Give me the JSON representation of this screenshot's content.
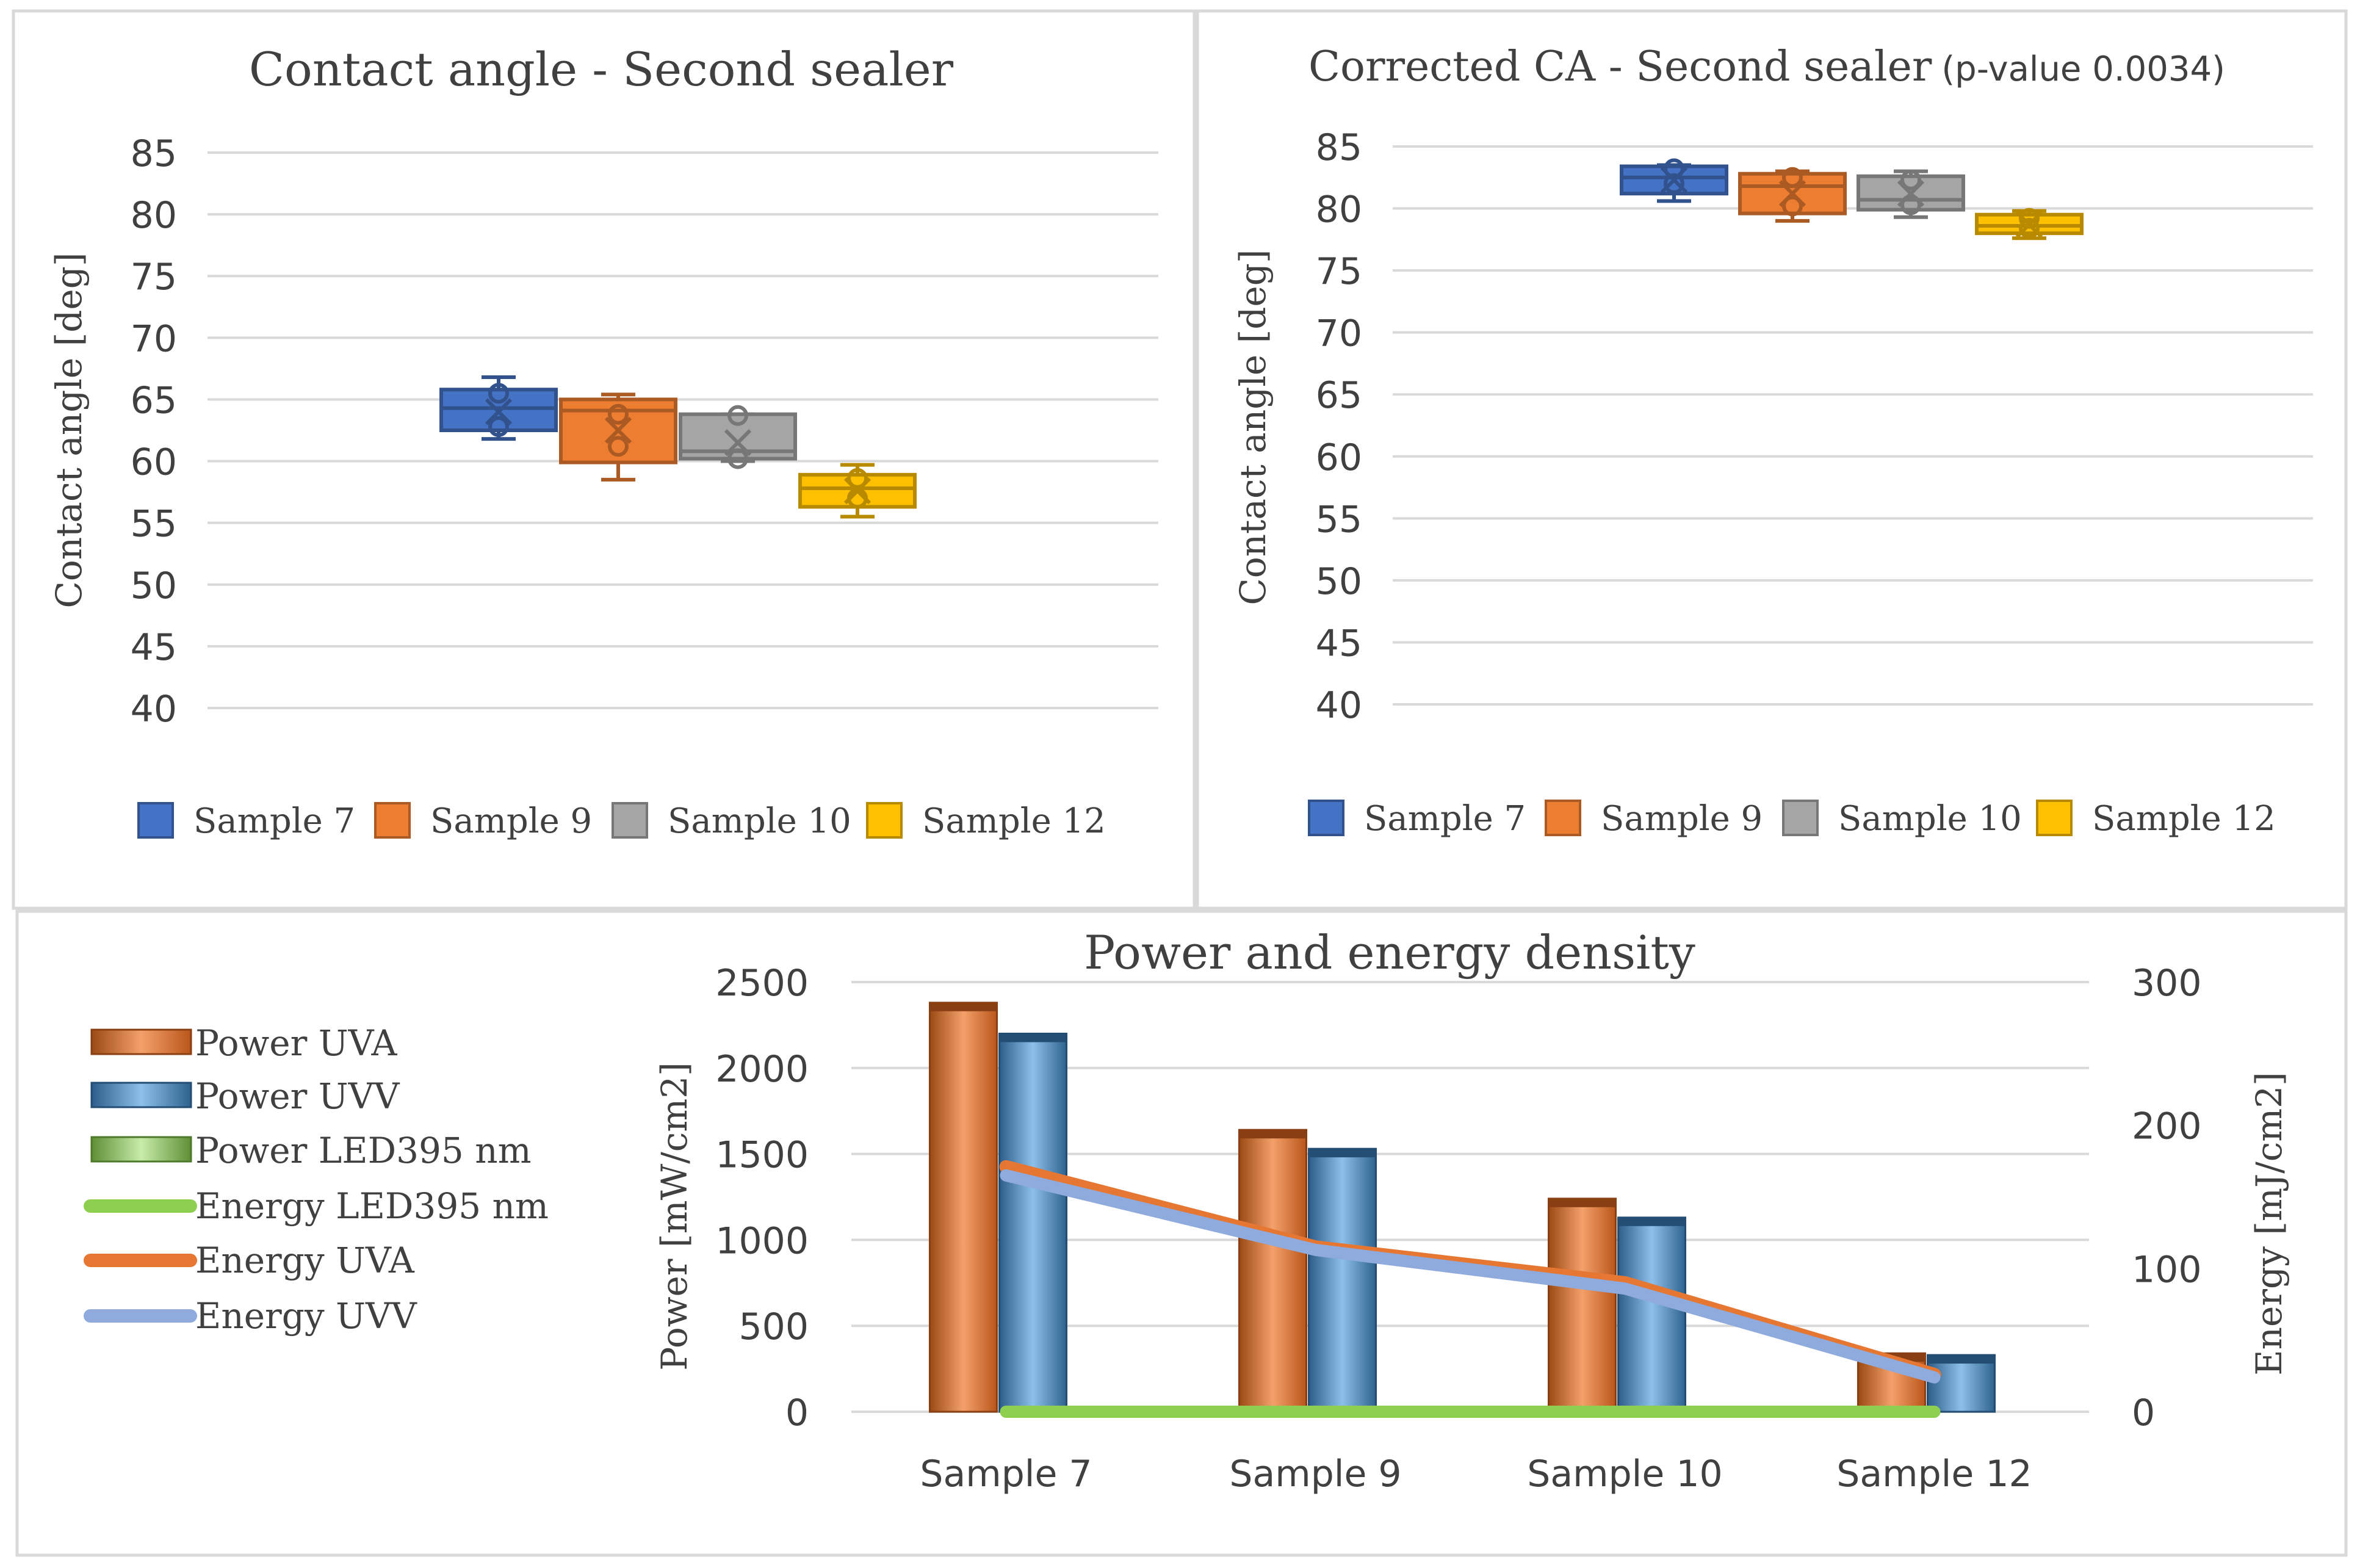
{
  "colors": {
    "sample7": "#4472c4",
    "sample9": "#ed7d31",
    "sample10": "#a5a5a5",
    "sample12": "#ffc000",
    "power_uva": "#ed7d31",
    "power_uvv": "#5b9bd5",
    "led395": "#8fcf50",
    "energy_uva": "#e57733",
    "energy_uvv": "#8faadc"
  },
  "chart_data": [
    {
      "type": "box",
      "title": "Contact angle - Second sealer",
      "ylabel": "Contact angle [deg]",
      "ylim": [
        40,
        85
      ],
      "yticks": [
        "85",
        "80",
        "75",
        "70",
        "65",
        "60",
        "55",
        "50",
        "45",
        "40"
      ],
      "legend": [
        "Sample 7",
        "Sample 9",
        "Sample 10",
        "Sample 12"
      ],
      "boxes": [
        {
          "name": "Sample 7",
          "min": 61.8,
          "q1": 62.5,
          "median": 64.3,
          "q3": 65.8,
          "max": 66.8,
          "mean": 64.0,
          "points": [
            62.8,
            65.5
          ]
        },
        {
          "name": "Sample 9",
          "min": 58.5,
          "q1": 59.9,
          "median": 64.1,
          "q3": 65.0,
          "max": 65.4,
          "mean": 62.5,
          "points": [
            61.2,
            63.8
          ]
        },
        {
          "name": "Sample 10",
          "min": 60.0,
          "q1": 60.2,
          "median": 60.8,
          "q3": 63.8,
          "max": 63.8,
          "mean": 61.5,
          "points": [
            60.2,
            63.7
          ]
        },
        {
          "name": "Sample 12",
          "min": 55.5,
          "q1": 56.3,
          "median": 57.8,
          "q3": 58.9,
          "max": 59.7,
          "mean": 57.6,
          "points": [
            57.0,
            58.6
          ]
        }
      ]
    },
    {
      "type": "box",
      "title": "Corrected CA - Second sealer",
      "title_suffix": "(p-value 0.0034)",
      "ylabel": "Contact angle [deg]",
      "ylim": [
        40,
        85
      ],
      "yticks": [
        "85",
        "80",
        "75",
        "70",
        "65",
        "60",
        "55",
        "50",
        "45",
        "40"
      ],
      "legend": [
        "Sample 7",
        "Sample 9",
        "Sample 10",
        "Sample 12"
      ],
      "boxes": [
        {
          "name": "Sample 7",
          "min": 80.6,
          "q1": 81.2,
          "median": 82.5,
          "q3": 83.4,
          "max": 83.5,
          "mean": 82.3,
          "points": [
            83.2,
            82.0
          ]
        },
        {
          "name": "Sample 9",
          "min": 79.0,
          "q1": 79.6,
          "median": 81.8,
          "q3": 82.8,
          "max": 83.0,
          "mean": 81.2,
          "points": [
            80.2,
            82.5
          ]
        },
        {
          "name": "Sample 10",
          "min": 79.3,
          "q1": 79.9,
          "median": 80.7,
          "q3": 82.6,
          "max": 83.0,
          "mean": 81.2,
          "points": [
            80.3,
            82.3
          ]
        },
        {
          "name": "Sample 12",
          "min": 77.6,
          "q1": 78.0,
          "median": 78.6,
          "q3": 79.5,
          "max": 79.8,
          "mean": 78.7,
          "points": [
            78.4,
            79.2
          ]
        }
      ]
    },
    {
      "type": "bar+line",
      "title": "Power and energy density",
      "categories": [
        "Sample 7",
        "Sample 9",
        "Sample 10",
        "Sample 12"
      ],
      "ylabel": "Power [mW/cm2]",
      "ylim": [
        0,
        2500
      ],
      "yticks": [
        "2500",
        "2000",
        "1500",
        "1000",
        "500",
        "0"
      ],
      "y2label": "Energy [mJ/cm2]",
      "y2lim": [
        0,
        300
      ],
      "y2ticks": [
        "300",
        "200",
        "100",
        "0"
      ],
      "bar_series": [
        {
          "name": "Power UVA",
          "values": [
            2380,
            1640,
            1240,
            340
          ]
        },
        {
          "name": "Power UVV",
          "values": [
            2200,
            1530,
            1130,
            330
          ]
        },
        {
          "name": "Power LED395 nm",
          "values": [
            0,
            0,
            0,
            0
          ]
        }
      ],
      "line_series": [
        {
          "name": "Energy LED395 nm",
          "values": [
            0,
            0,
            0,
            0
          ]
        },
        {
          "name": "Energy UVA",
          "values": [
            171,
            115,
            90,
            26
          ]
        },
        {
          "name": "Energy UVV",
          "values": [
            165,
            113,
            86,
            24
          ]
        }
      ],
      "legend": [
        "Power UVA",
        "Power UVV",
        "Power LED395 nm",
        "Energy LED395 nm",
        "Energy UVA",
        "Energy UVV"
      ]
    }
  ]
}
